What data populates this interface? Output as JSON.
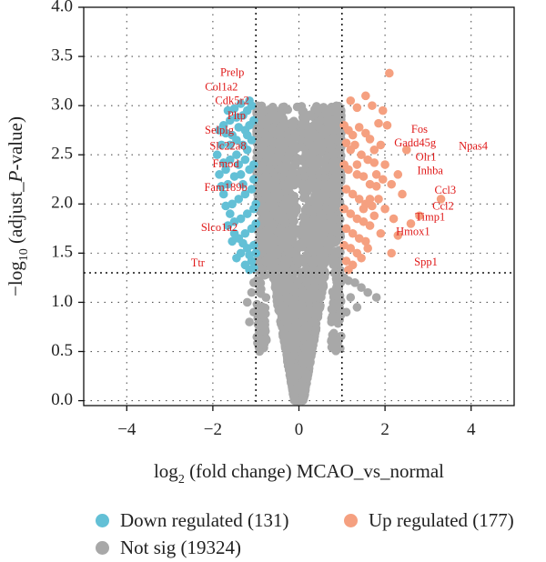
{
  "chart_data": {
    "type": "scatter",
    "title": "",
    "xlabel": {
      "prefix": "log",
      "sub": "2",
      "rest": " (fold change) MCAO_vs_normal"
    },
    "ylabel": {
      "prefix": "−log",
      "sub": "10",
      "rest": " (adjust_",
      "italic": "P",
      "rest2": "-value)"
    },
    "xlim": [
      -5,
      5
    ],
    "ylim": [
      -0.05,
      4.0
    ],
    "xticks": [
      -4,
      -2,
      0,
      2,
      4
    ],
    "xtick_labels": [
      "−4",
      "−2",
      "0",
      "2",
      "4"
    ],
    "yticks": [
      0.0,
      0.5,
      1.0,
      1.5,
      2.0,
      2.5,
      3.0,
      3.5,
      4.0
    ],
    "ytick_labels": [
      "0.0",
      "0.5",
      "1.0",
      "1.5",
      "2.0",
      "2.5",
      "3.0",
      "3.5",
      "4.0"
    ],
    "grid": true,
    "thresholds": {
      "log2fc": [
        -1,
        1
      ],
      "padj_log10": 1.3
    },
    "colors": {
      "down": "#63c0d6",
      "up": "#f5a080",
      "ns": "#a8a8a8",
      "label": "#e01a1a"
    },
    "series": [
      {
        "name": "Down regulated (131)",
        "key": "down",
        "color": "#63c0d6",
        "points": [
          [
            -1.1,
            3.0
          ],
          [
            -1.2,
            2.95
          ],
          [
            -1.35,
            3.02
          ],
          [
            -1.5,
            2.97
          ],
          [
            -1.65,
            2.95
          ],
          [
            -1.05,
            2.85
          ],
          [
            -1.15,
            2.8
          ],
          [
            -1.25,
            2.75
          ],
          [
            -1.4,
            2.78
          ],
          [
            -1.55,
            2.7
          ],
          [
            -1.7,
            2.72
          ],
          [
            -1.8,
            2.6
          ],
          [
            -1.1,
            2.65
          ],
          [
            -1.2,
            2.55
          ],
          [
            -1.3,
            2.6
          ],
          [
            -1.45,
            2.5
          ],
          [
            -1.6,
            2.45
          ],
          [
            -1.75,
            2.42
          ],
          [
            -1.05,
            2.4
          ],
          [
            -1.15,
            2.35
          ],
          [
            -1.35,
            2.3
          ],
          [
            -1.5,
            2.28
          ],
          [
            -1.65,
            2.2
          ],
          [
            -1.8,
            2.18
          ],
          [
            -1.1,
            2.15
          ],
          [
            -1.25,
            2.1
          ],
          [
            -1.4,
            2.05
          ],
          [
            -1.55,
            2.0
          ],
          [
            -1.7,
            1.98
          ],
          [
            -1.05,
            1.95
          ],
          [
            -1.2,
            1.9
          ],
          [
            -1.35,
            1.85
          ],
          [
            -1.5,
            1.82
          ],
          [
            -1.65,
            1.78
          ],
          [
            -1.1,
            1.75
          ],
          [
            -1.25,
            1.7
          ],
          [
            -1.4,
            1.65
          ],
          [
            -1.55,
            1.62
          ],
          [
            -1.05,
            1.58
          ],
          [
            -1.2,
            1.55
          ],
          [
            -1.35,
            1.5
          ],
          [
            -1.45,
            1.45
          ],
          [
            -1.1,
            1.42
          ],
          [
            -1.25,
            1.38
          ],
          [
            -1.15,
            1.33
          ],
          [
            -1.3,
            2.9
          ],
          [
            -1.45,
            2.88
          ],
          [
            -1.6,
            2.85
          ],
          [
            -1.75,
            2.8
          ],
          [
            -1.85,
            2.75
          ],
          [
            -1.9,
            2.5
          ],
          [
            -1.85,
            2.3
          ],
          [
            -1.75,
            2.1
          ],
          [
            -1.6,
            1.9
          ],
          [
            -1.5,
            1.7
          ],
          [
            -1.3,
            1.6
          ],
          [
            -1.15,
            1.48
          ],
          [
            -1.05,
            1.35
          ],
          [
            -1.45,
            2.65
          ],
          [
            -1.25,
            2.45
          ],
          [
            -1.05,
            2.25
          ],
          [
            -1.0,
            2.0
          ],
          [
            -1.0,
            1.8
          ],
          [
            -1.0,
            1.5
          ],
          [
            -1.3,
            2.2
          ],
          [
            -1.2,
            2.7
          ],
          [
            -1.6,
            2.6
          ],
          [
            -1.7,
            2.35
          ],
          [
            -1.4,
            2.4
          ],
          [
            -1.15,
            3.05
          ]
        ]
      },
      {
        "name": "Up regulated (177)",
        "key": "up",
        "color": "#f5a080",
        "points": [
          [
            1.2,
            3.05
          ],
          [
            1.35,
            2.98
          ],
          [
            1.55,
            3.1
          ],
          [
            1.7,
            3.0
          ],
          [
            1.85,
            2.82
          ],
          [
            1.05,
            2.8
          ],
          [
            1.15,
            2.75
          ],
          [
            1.25,
            2.7
          ],
          [
            1.4,
            2.78
          ],
          [
            1.55,
            2.72
          ],
          [
            1.65,
            2.66
          ],
          [
            1.1,
            2.62
          ],
          [
            1.2,
            2.55
          ],
          [
            1.3,
            2.6
          ],
          [
            1.45,
            2.5
          ],
          [
            1.6,
            2.45
          ],
          [
            1.75,
            2.42
          ],
          [
            1.05,
            2.4
          ],
          [
            1.15,
            2.35
          ],
          [
            1.35,
            2.3
          ],
          [
            1.5,
            2.28
          ],
          [
            1.65,
            2.2
          ],
          [
            1.8,
            2.18
          ],
          [
            1.1,
            2.15
          ],
          [
            1.25,
            2.1
          ],
          [
            1.4,
            2.05
          ],
          [
            1.55,
            2.0
          ],
          [
            1.7,
            1.98
          ],
          [
            1.05,
            1.95
          ],
          [
            1.2,
            1.9
          ],
          [
            1.35,
            1.85
          ],
          [
            1.5,
            1.82
          ],
          [
            1.65,
            1.78
          ],
          [
            1.1,
            1.75
          ],
          [
            1.25,
            1.7
          ],
          [
            1.4,
            1.65
          ],
          [
            1.55,
            1.62
          ],
          [
            1.05,
            1.58
          ],
          [
            1.2,
            1.55
          ],
          [
            1.35,
            1.5
          ],
          [
            1.45,
            1.45
          ],
          [
            1.1,
            1.42
          ],
          [
            1.25,
            1.38
          ],
          [
            1.15,
            1.33
          ],
          [
            2.1,
            3.33
          ],
          [
            1.95,
            2.95
          ],
          [
            2.05,
            2.8
          ],
          [
            1.9,
            2.6
          ],
          [
            2.0,
            2.4
          ],
          [
            2.15,
            2.2
          ],
          [
            1.85,
            2.05
          ],
          [
            2.0,
            1.95
          ],
          [
            2.2,
            1.85
          ],
          [
            2.3,
            1.68
          ],
          [
            2.6,
            1.8
          ],
          [
            2.8,
            1.88
          ],
          [
            3.3,
            2.05
          ],
          [
            2.15,
            1.5
          ],
          [
            2.3,
            2.3
          ],
          [
            2.5,
            2.55
          ],
          [
            1.75,
            2.55
          ],
          [
            1.8,
            2.3
          ],
          [
            1.65,
            2.05
          ],
          [
            1.5,
            1.95
          ],
          [
            1.35,
            2.4
          ],
          [
            1.6,
            1.55
          ],
          [
            1.9,
            1.7
          ],
          [
            1.75,
            1.88
          ],
          [
            2.4,
            2.1
          ],
          [
            1.95,
            2.25
          ]
        ]
      },
      {
        "name": "Not sig (19324)",
        "key": "ns",
        "color": "#a8a8a8"
      }
    ],
    "labels": [
      {
        "text": "Prelp",
        "x": -1.55,
        "y": 3.33
      },
      {
        "text": "Col1a2",
        "x": -1.8,
        "y": 3.18
      },
      {
        "text": "Cdk5r2",
        "x": -1.55,
        "y": 3.04
      },
      {
        "text": "Pltp",
        "x": -1.45,
        "y": 2.89
      },
      {
        "text": "Selplg",
        "x": -1.85,
        "y": 2.74
      },
      {
        "text": "Slc22a8",
        "x": -1.65,
        "y": 2.58
      },
      {
        "text": "Fmod",
        "x": -1.7,
        "y": 2.4
      },
      {
        "text": "Fam189b",
        "x": -1.7,
        "y": 2.16
      },
      {
        "text": "Slco1a2",
        "x": -1.85,
        "y": 1.75
      },
      {
        "text": "Ttr",
        "x": -2.35,
        "y": 1.39
      },
      {
        "text": "Fos",
        "x": 2.8,
        "y": 2.75
      },
      {
        "text": "Gadd45g",
        "x": 2.7,
        "y": 2.61
      },
      {
        "text": "Npas4",
        "x": 4.05,
        "y": 2.58
      },
      {
        "text": "Olr1",
        "x": 2.95,
        "y": 2.47
      },
      {
        "text": "Inhba",
        "x": 3.05,
        "y": 2.33
      },
      {
        "text": "Ccl3",
        "x": 3.4,
        "y": 2.13
      },
      {
        "text": "Ccl2",
        "x": 3.35,
        "y": 1.97
      },
      {
        "text": "Timp1",
        "x": 3.05,
        "y": 1.86
      },
      {
        "text": "Hmox1",
        "x": 2.65,
        "y": 1.71
      },
      {
        "text": "Spp1",
        "x": 2.95,
        "y": 1.4
      }
    ],
    "legend": {
      "placement": "bottom"
    }
  }
}
